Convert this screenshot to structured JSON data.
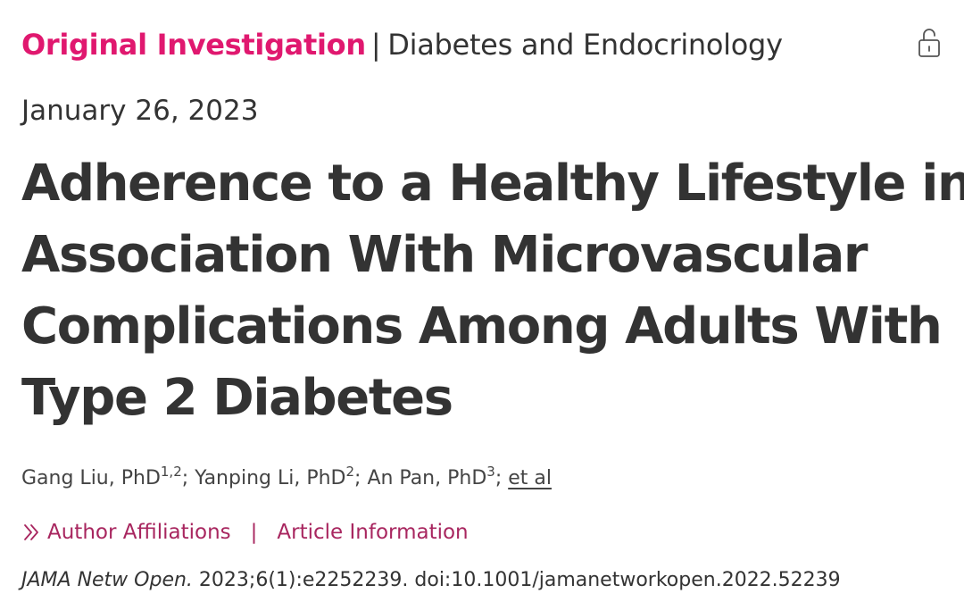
{
  "header": {
    "article_type": "Original Investigation",
    "separator": "|",
    "category": "Diabetes and Endocrinology"
  },
  "icons": {
    "access": "unlock-icon",
    "expand": "chevron-double-right-icon"
  },
  "colors": {
    "article_type": "#e0186f",
    "links": "#a8265f",
    "text": "#333333"
  },
  "date": "January 26, 2023",
  "title": {
    "lines": [
      "Adherence to a Healthy Lifestyle in",
      "Association With Microvascular",
      "Complications Among Adults With",
      "Type 2 Diabetes"
    ]
  },
  "authors": [
    {
      "name": "Gang Liu, PhD",
      "affil": "1,2",
      "sep": "; "
    },
    {
      "name": "Yanping Li, PhD",
      "affil": "2",
      "sep": "; "
    },
    {
      "name": "An Pan, PhD",
      "affil": "3",
      "sep": "; "
    }
  ],
  "et_al": "et al",
  "links": {
    "affiliations": "Author Affiliations",
    "separator": "|",
    "article_info": "Article Information"
  },
  "citation": {
    "journal": "JAMA Netw Open.",
    "reference": "2023;6(1):e2252239. doi:10.1001/jamanetworkopen.2022.52239"
  }
}
